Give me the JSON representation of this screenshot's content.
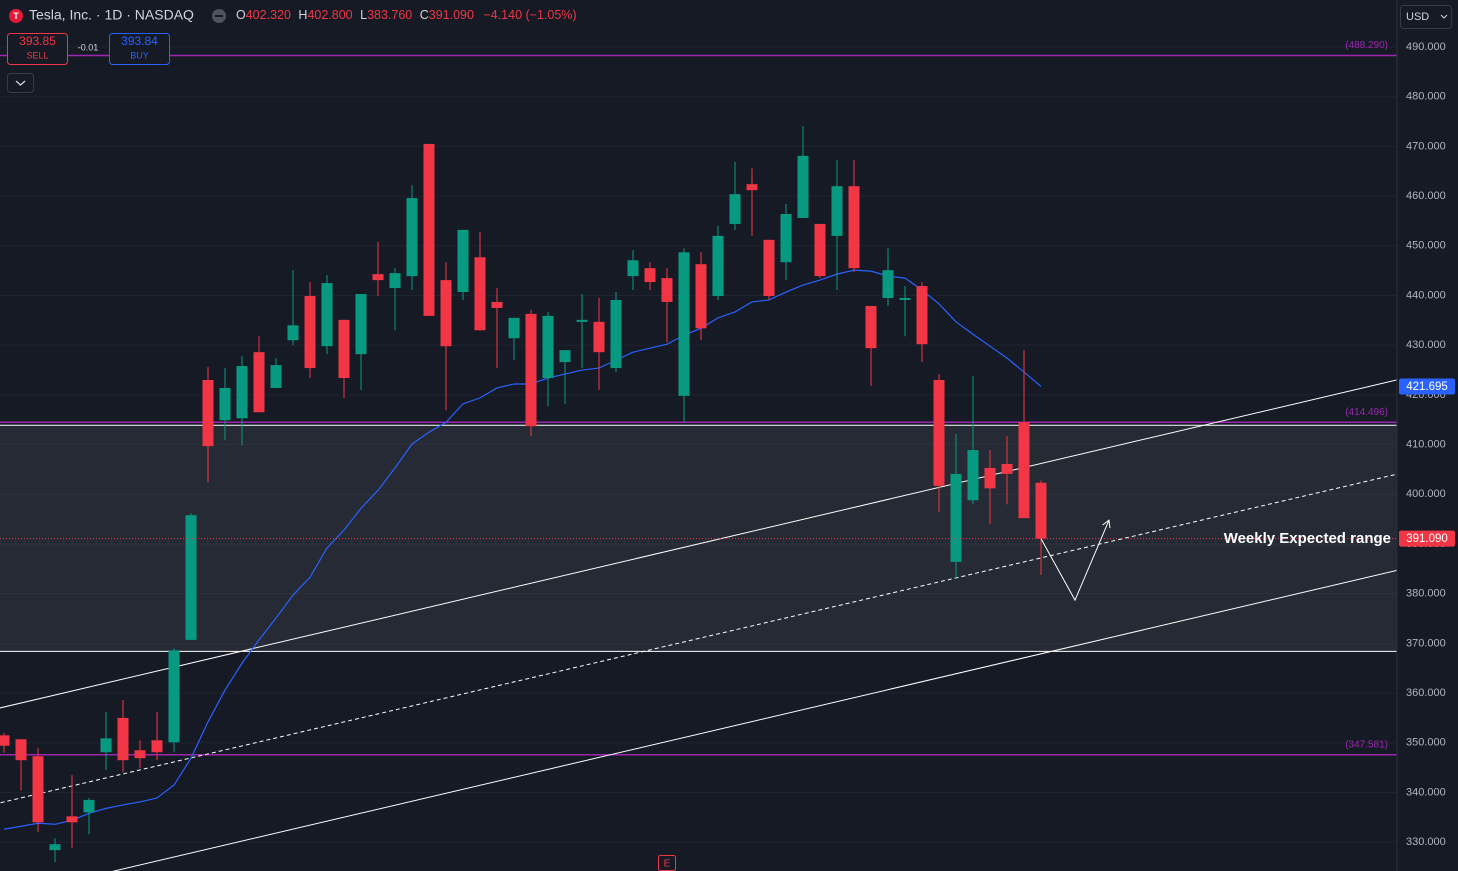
{
  "header": {
    "symbol": "Tesla, Inc. · 1D · NASDAQ",
    "ohlc": [
      {
        "key": "O",
        "value": "402.320"
      },
      {
        "key": "H",
        "value": "402.800"
      },
      {
        "key": "L",
        "value": "383.760"
      },
      {
        "key": "C",
        "value": "391.090"
      }
    ],
    "change": "−4.140 (−1.05%)",
    "sell_price": "393.85",
    "sell": "SELL",
    "spread": "-0.01",
    "buy_price": "393.84",
    "buy": "BUY",
    "currency": "USD",
    "earnings": "E"
  },
  "chart_data": {
    "type": "candlestick",
    "up_color": "#089981",
    "down_color": "#f23645",
    "open": [
      351.5,
      350.7,
      347.3,
      328.4,
      335.2,
      336.0,
      348.1,
      355.0,
      348.5,
      350.5,
      350.1,
      370.7,
      423.0,
      414.9,
      415.3,
      428.6,
      421.4,
      431.0,
      439.9,
      429.8,
      435.1,
      428.2,
      444.3,
      441.5,
      443.9,
      470.5,
      443.1,
      440.7,
      447.7,
      438.7,
      431.4,
      436.3,
      423.4,
      426.6,
      434.7,
      434.7,
      425.4,
      443.9,
      445.5,
      443.5,
      419.8,
      446.3,
      439.9,
      454.4,
      462.4,
      451.2,
      446.7,
      455.6,
      454.4,
      452.0,
      462.0,
      437.9,
      439.5,
      439.1,
      441.9,
      423.0,
      386.4,
      398.8,
      405.3,
      406.1,
      414.5,
      402.32
    ],
    "high": [
      352.0,
      350.7,
      348.9,
      330.8,
      343.5,
      338.9,
      356.2,
      358.6,
      350.5,
      356.2,
      369.0,
      396.2,
      425.6,
      425.4,
      427.8,
      431.8,
      427.4,
      445.1,
      442.7,
      444.1,
      435.1,
      440.3,
      450.8,
      445.5,
      462.2,
      470.5,
      446.7,
      453.2,
      452.8,
      441.5,
      435.5,
      437.1,
      436.7,
      429.0,
      440.3,
      439.5,
      440.7,
      449.1,
      446.7,
      445.5,
      449.5,
      448.7,
      454.0,
      466.9,
      465.6,
      451.2,
      458.4,
      474.1,
      454.4,
      467.3,
      467.3,
      437.9,
      449.5,
      441.9,
      442.7,
      424.2,
      412.1,
      423.8,
      408.9,
      411.7,
      429.0,
      402.8
    ],
    "low": [
      348.0,
      340.4,
      332.0,
      326.0,
      328.8,
      331.6,
      344.5,
      344.1,
      344.9,
      346.5,
      348.1,
      370.7,
      402.5,
      410.9,
      409.9,
      416.5,
      421.4,
      430.0,
      423.4,
      428.2,
      419.4,
      421.0,
      439.9,
      433.0,
      441.1,
      435.9,
      416.9,
      439.1,
      433.0,
      425.4,
      427.0,
      411.7,
      417.7,
      418.2,
      425.4,
      421.0,
      424.6,
      441.1,
      441.1,
      430.6,
      414.5,
      431.0,
      439.1,
      453.2,
      452.0,
      439.1,
      443.1,
      455.6,
      443.5,
      441.1,
      444.7,
      421.8,
      437.9,
      431.8,
      426.6,
      396.4,
      383.1,
      398.0,
      394.0,
      398.0,
      395.2,
      383.76
    ],
    "close": [
      349.4,
      346.5,
      334.0,
      329.6,
      334.0,
      338.5,
      350.9,
      346.5,
      346.9,
      348.1,
      368.6,
      395.8,
      409.7,
      421.4,
      425.8,
      416.5,
      426.0,
      434.0,
      425.4,
      442.5,
      423.4,
      440.3,
      443.1,
      444.5,
      459.6,
      435.9,
      429.8,
      453.2,
      433.0,
      437.5,
      435.5,
      413.7,
      435.9,
      429.0,
      435.1,
      428.6,
      439.1,
      447.1,
      442.7,
      438.7,
      448.7,
      433.4,
      452.0,
      460.4,
      461.2,
      439.9,
      456.4,
      468.1,
      443.9,
      462.0,
      445.5,
      429.4,
      445.1,
      439.5,
      430.2,
      401.7,
      404.1,
      408.9,
      401.2,
      404.1,
      395.2,
      391.09
    ],
    "ma": {
      "color": "#2962ff",
      "last_label": "421.695",
      "values": [
        332.6,
        333.2,
        333.8,
        333.6,
        334.4,
        335.8,
        336.8,
        337.5,
        338.1,
        338.9,
        341.5,
        346.9,
        354.2,
        360.6,
        366.0,
        370.7,
        375.1,
        379.7,
        383.3,
        389.2,
        392.8,
        397.2,
        400.8,
        405.3,
        410.1,
        412.5,
        414.5,
        418.2,
        419.4,
        421.4,
        422.2,
        422.2,
        423.4,
        424.2,
        425.0,
        425.4,
        427.0,
        428.6,
        429.4,
        430.2,
        432.0,
        433.4,
        435.5,
        436.7,
        438.7,
        439.1,
        440.7,
        442.1,
        443.1,
        444.3,
        445.1,
        444.9,
        443.9,
        443.5,
        441.1,
        438.3,
        434.7,
        432.2,
        429.8,
        427.4,
        424.6,
        421.695
      ]
    },
    "ylim": [
      324.2,
      499.46
    ],
    "yticks": [
      {
        "value": 330,
        "label": "330.000"
      },
      {
        "value": 340,
        "label": "340.000"
      },
      {
        "value": 350,
        "label": "350.000"
      },
      {
        "value": 360,
        "label": "360.000"
      },
      {
        "value": 370,
        "label": "370.000"
      },
      {
        "value": 380,
        "label": "380.000"
      },
      {
        "value": 390,
        "label": "390.000"
      },
      {
        "value": 400,
        "label": "400.000"
      },
      {
        "value": 410,
        "label": "410.000"
      },
      {
        "value": 420,
        "label": "420.000"
      },
      {
        "value": 430,
        "label": "430.000"
      },
      {
        "value": 440,
        "label": "440.000"
      },
      {
        "value": 450,
        "label": "450.000"
      },
      {
        "value": 460,
        "label": "460.000"
      },
      {
        "value": 470,
        "label": "470.000"
      },
      {
        "value": 480,
        "label": "480.000"
      },
      {
        "value": 490,
        "label": "490.000"
      }
    ],
    "grid": true,
    "levels": [
      {
        "value": 488.29,
        "label": "(488.290)"
      },
      {
        "value": 414.496,
        "label": "(414.496)"
      },
      {
        "value": 347.581,
        "label": "(347.581)"
      }
    ],
    "level_color": "#9c27b0",
    "range": {
      "label": "Weekly Expected range",
      "top": 413.9,
      "bottom": 368.4
    },
    "price_line": {
      "value": 391.09,
      "label": "391.090"
    },
    "trend_lines": [
      {
        "style": "solid",
        "points": [
          {
            "bar": 0,
            "value": 357.2
          },
          {
            "bar": 61,
            "value": 406.2
          }
        ]
      },
      {
        "style": "dashed",
        "points": [
          {
            "bar": 0,
            "value": 338.1
          },
          {
            "bar": 61,
            "value": 387.2
          }
        ]
      },
      {
        "style": "solid",
        "points": [
          {
            "bar": 0,
            "value": 319.0
          },
          {
            "bar": 61,
            "value": 367.9
          }
        ]
      }
    ],
    "projection": [
      {
        "bar": 61,
        "value": 391.09
      },
      {
        "bar": 63,
        "value": 378.7
      },
      {
        "bar": 65,
        "value": 394.8
      }
    ],
    "earnings_bar": 39
  }
}
